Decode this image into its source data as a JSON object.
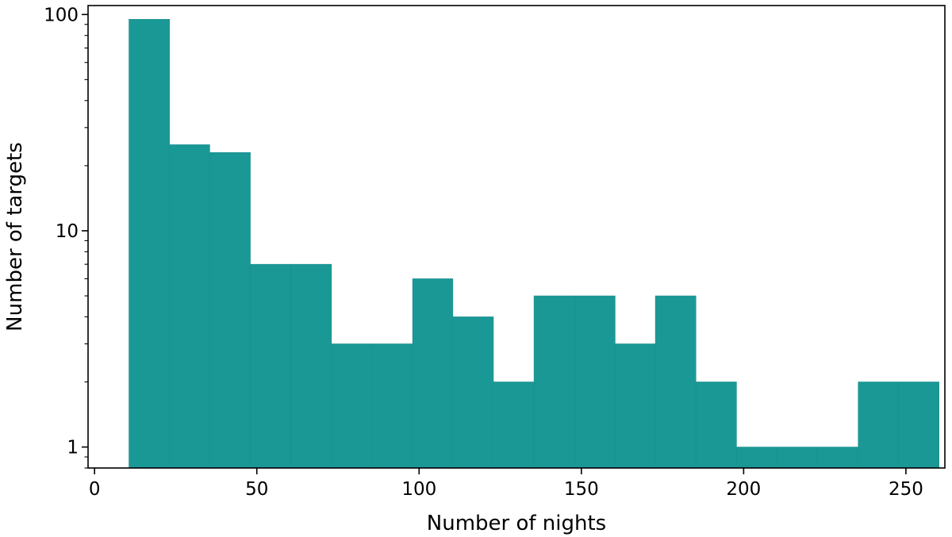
{
  "chart_data": {
    "type": "bar",
    "title": "",
    "xlabel": "Number of nights",
    "ylabel": "Number of targets",
    "yscale": "log",
    "xlim": [
      -2,
      262
    ],
    "ylim": [
      0.8,
      110
    ],
    "grid": false,
    "bar_color": "#1a9896",
    "x_ticks": [
      {
        "value": 0,
        "label": "0"
      },
      {
        "value": 50,
        "label": "50"
      },
      {
        "value": 100,
        "label": "100"
      },
      {
        "value": 150,
        "label": "150"
      },
      {
        "value": 200,
        "label": "200"
      },
      {
        "value": 250,
        "label": "250"
      }
    ],
    "y_ticks": [
      {
        "value": 1,
        "label": "1"
      },
      {
        "value": 10,
        "label": "10"
      },
      {
        "value": 100,
        "label": "100"
      }
    ],
    "bins": [
      {
        "x0": 10.6,
        "x1": 23.1,
        "count": 95
      },
      {
        "x0": 23.1,
        "x1": 35.5,
        "count": 25
      },
      {
        "x0": 35.5,
        "x1": 48.0,
        "count": 23
      },
      {
        "x0": 48.0,
        "x1": 60.5,
        "count": 7
      },
      {
        "x0": 60.5,
        "x1": 73.0,
        "count": 7
      },
      {
        "x0": 73.0,
        "x1": 85.5,
        "count": 3
      },
      {
        "x0": 85.5,
        "x1": 98.0,
        "count": 3
      },
      {
        "x0": 98.0,
        "x1": 110.4,
        "count": 6
      },
      {
        "x0": 110.4,
        "x1": 122.9,
        "count": 4
      },
      {
        "x0": 122.9,
        "x1": 135.4,
        "count": 2
      },
      {
        "x0": 135.4,
        "x1": 147.9,
        "count": 5
      },
      {
        "x0": 147.9,
        "x1": 160.4,
        "count": 5
      },
      {
        "x0": 160.4,
        "x1": 172.8,
        "count": 3
      },
      {
        "x0": 172.8,
        "x1": 185.3,
        "count": 5
      },
      {
        "x0": 185.3,
        "x1": 197.8,
        "count": 2
      },
      {
        "x0": 197.8,
        "x1": 210.3,
        "count": 1
      },
      {
        "x0": 210.3,
        "x1": 222.8,
        "count": 1
      },
      {
        "x0": 222.8,
        "x1": 235.3,
        "count": 1
      },
      {
        "x0": 235.3,
        "x1": 247.7,
        "count": 2
      },
      {
        "x0": 247.7,
        "x1": 260.2,
        "count": 2
      }
    ]
  }
}
